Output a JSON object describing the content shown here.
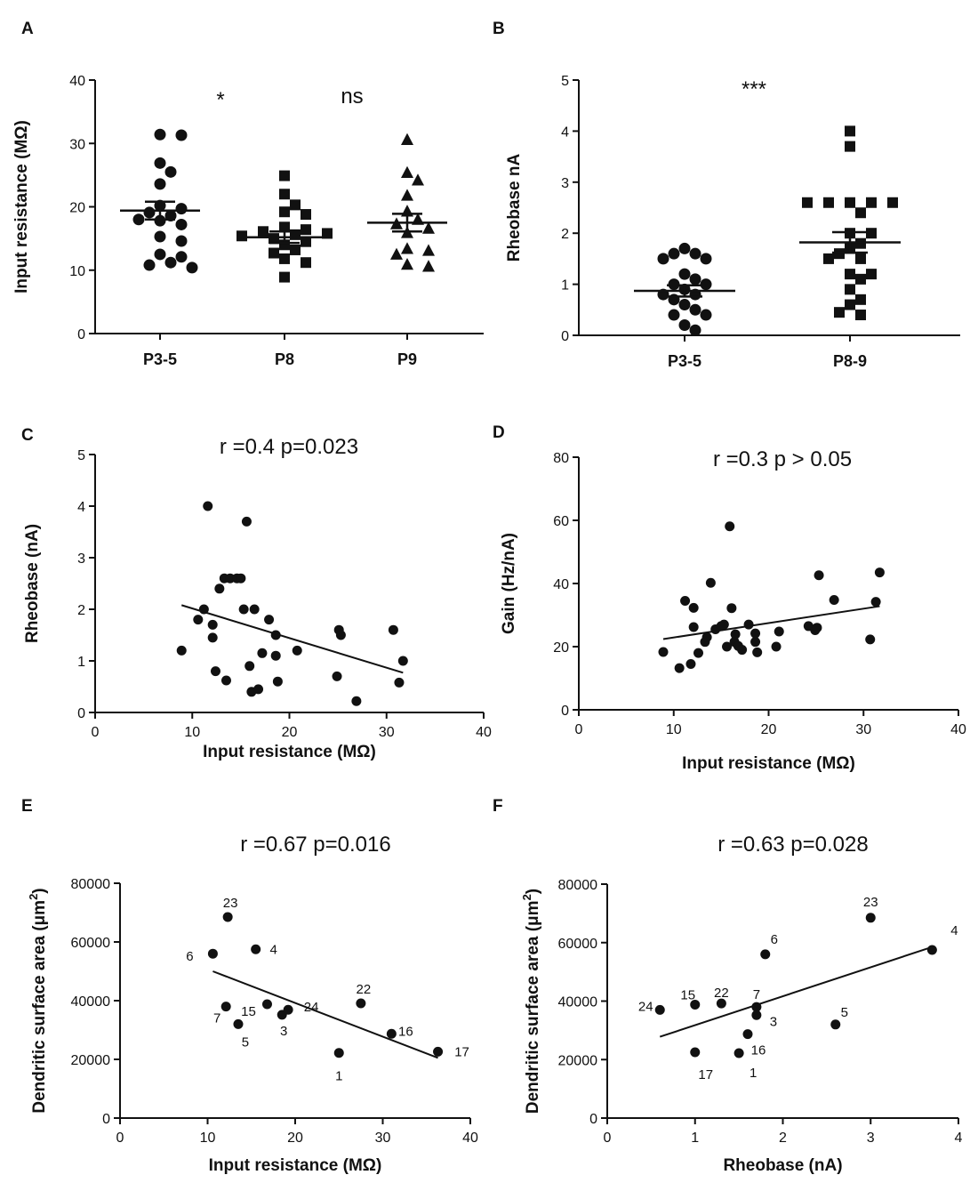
{
  "chart_data": [
    {
      "panel": "A",
      "type": "scatter",
      "subtype": "dot_plot",
      "ylabel": "Input resistance (MΩ)",
      "ylim": [
        0,
        40
      ],
      "yticks": [
        "0",
        "10",
        "20",
        "30",
        "40"
      ],
      "categories": [
        "P3-5",
        "P8",
        "P9"
      ],
      "significance": [
        "*",
        "ns"
      ],
      "marker": "circle,square,triangle",
      "groups": [
        {
          "category": "P3-5",
          "mean": 19.4,
          "sem": 1.4,
          "values": [
            31.4,
            31.3,
            26.9,
            25.5,
            23.6,
            20.2,
            19.7,
            19.1,
            18.6,
            18.0,
            17.8,
            17.2,
            15.3,
            14.6,
            12.5,
            12.1,
            11.2,
            10.8,
            10.4
          ]
        },
        {
          "category": "P8",
          "mean": 15.2,
          "sem": 0.9,
          "values": [
            24.9,
            22.0,
            20.3,
            19.2,
            18.8,
            16.8,
            16.4,
            16.1,
            15.8,
            15.6,
            15.4,
            15.0,
            14.5,
            14.0,
            13.2,
            12.7,
            11.8,
            11.2,
            8.9
          ]
        },
        {
          "category": "P9",
          "mean": 17.5,
          "sem": 1.4,
          "values": [
            30.5,
            25.3,
            24.1,
            21.7,
            19.2,
            17.9,
            17.2,
            16.5,
            15.8,
            13.3,
            13.0,
            12.4,
            10.8,
            10.5
          ]
        }
      ]
    },
    {
      "panel": "B",
      "type": "scatter",
      "subtype": "dot_plot",
      "ylabel": "Rheobase nA",
      "ylim": [
        0,
        5
      ],
      "yticks": [
        "0",
        "1",
        "2",
        "3",
        "4",
        "5"
      ],
      "categories": [
        "P3-5",
        "P8-9"
      ],
      "significance": [
        "***"
      ],
      "marker": "circle,square",
      "groups": [
        {
          "category": "P3-5",
          "mean": 0.87,
          "sem": 0.11,
          "values": [
            1.7,
            1.6,
            1.6,
            1.5,
            1.5,
            1.2,
            1.1,
            1.0,
            1.0,
            0.9,
            0.8,
            0.8,
            0.7,
            0.6,
            0.5,
            0.4,
            0.4,
            0.2,
            0.1
          ]
        },
        {
          "category": "P8-9",
          "mean": 1.82,
          "sem": 0.2,
          "values": [
            4.0,
            3.7,
            2.6,
            2.6,
            2.6,
            2.6,
            2.6,
            2.4,
            2.0,
            2.0,
            1.8,
            1.7,
            1.6,
            1.5,
            1.5,
            1.2,
            1.2,
            1.1,
            0.9,
            0.7,
            0.6,
            0.4,
            0.45
          ]
        }
      ]
    },
    {
      "panel": "C",
      "type": "scatter",
      "annotation": "r =0.4  p=0.023",
      "xlabel": "Input resistance (MΩ)",
      "ylabel": "Rheobase (nA)",
      "xlim": [
        0,
        40
      ],
      "ylim": [
        0,
        5
      ],
      "xticks": [
        "0",
        "10",
        "20",
        "30",
        "40"
      ],
      "yticks": [
        "0",
        "1",
        "2",
        "3",
        "4",
        "5"
      ],
      "points": [
        [
          8.9,
          1.2
        ],
        [
          10.6,
          1.8
        ],
        [
          11.2,
          2.0
        ],
        [
          11.6,
          4.0
        ],
        [
          12.1,
          1.7
        ],
        [
          12.1,
          1.45
        ],
        [
          12.4,
          0.8
        ],
        [
          12.8,
          2.4
        ],
        [
          13.3,
          2.6
        ],
        [
          13.5,
          0.62
        ],
        [
          13.9,
          2.6
        ],
        [
          14.6,
          2.6
        ],
        [
          15.0,
          2.6
        ],
        [
          15.3,
          2.0
        ],
        [
          15.6,
          3.7
        ],
        [
          15.9,
          0.9
        ],
        [
          16.1,
          0.4
        ],
        [
          16.4,
          2.0
        ],
        [
          16.8,
          0.45
        ],
        [
          17.2,
          1.15
        ],
        [
          17.9,
          1.8
        ],
        [
          18.6,
          1.1
        ],
        [
          18.6,
          1.5
        ],
        [
          18.8,
          0.6
        ],
        [
          20.8,
          1.2
        ],
        [
          24.9,
          0.7
        ],
        [
          25.1,
          1.6
        ],
        [
          25.3,
          1.5
        ],
        [
          26.9,
          0.22
        ],
        [
          30.7,
          1.6
        ],
        [
          31.3,
          0.58
        ],
        [
          31.7,
          1.0
        ]
      ],
      "fit": {
        "x": [
          8.9,
          31.7
        ],
        "y": [
          2.08,
          0.77
        ]
      }
    },
    {
      "panel": "D",
      "type": "scatter",
      "annotation": "r =0.3  p > 0.05",
      "xlabel": "Input resistance (MΩ)",
      "ylabel": "Gain (Hz/nA)",
      "xlim": [
        0,
        40
      ],
      "ylim": [
        0,
        80
      ],
      "xticks": [
        "0",
        "10",
        "20",
        "30",
        "40"
      ],
      "yticks": [
        "0",
        "20",
        "40",
        "60",
        "80"
      ],
      "points": [
        [
          8.9,
          18.3
        ],
        [
          10.6,
          13.2
        ],
        [
          11.2,
          34.5
        ],
        [
          11.8,
          14.5
        ],
        [
          12.1,
          32.3
        ],
        [
          12.1,
          26.2
        ],
        [
          12.6,
          18.0
        ],
        [
          13.3,
          21.5
        ],
        [
          13.5,
          23.0
        ],
        [
          13.9,
          40.2
        ],
        [
          14.4,
          25.5
        ],
        [
          15.0,
          26.5
        ],
        [
          15.3,
          27.0
        ],
        [
          15.6,
          20.0
        ],
        [
          15.9,
          58.1
        ],
        [
          16.1,
          32.2
        ],
        [
          16.4,
          21.5
        ],
        [
          16.5,
          23.9
        ],
        [
          16.8,
          20.2
        ],
        [
          17.2,
          19.0
        ],
        [
          17.9,
          27.0
        ],
        [
          18.6,
          21.5
        ],
        [
          18.6,
          24.2
        ],
        [
          18.8,
          18.2
        ],
        [
          20.8,
          20.0
        ],
        [
          21.1,
          24.8
        ],
        [
          24.2,
          26.5
        ],
        [
          24.9,
          25.2
        ],
        [
          25.1,
          26.0
        ],
        [
          25.3,
          42.6
        ],
        [
          26.9,
          34.8
        ],
        [
          30.7,
          22.3
        ],
        [
          31.3,
          34.2
        ],
        [
          31.7,
          43.5
        ]
      ],
      "fit": {
        "x": [
          8.9,
          31.7
        ],
        "y": [
          22.4,
          32.8
        ]
      }
    },
    {
      "panel": "E",
      "type": "scatter",
      "annotation": "r =0.67  p=0.016",
      "xlabel": "Input resistance (MΩ)",
      "ylabel": "Dendritic surface area (μm²)",
      "ylabel_main": "Dendritic surface area (μm",
      "ylabel_sup": "2",
      "ylabel_end": ")",
      "xlim": [
        0,
        40
      ],
      "ylim": [
        0,
        80000
      ],
      "xticks": [
        "0",
        "10",
        "20",
        "30",
        "40"
      ],
      "yticks": [
        "0",
        "20000",
        "40000",
        "60000",
        "80000"
      ],
      "points": [
        {
          "x": 10.6,
          "y": 56000,
          "label": "6"
        },
        {
          "x": 12.1,
          "y": 38000,
          "label": "7"
        },
        {
          "x": 12.3,
          "y": 68500,
          "label": "23"
        },
        {
          "x": 13.5,
          "y": 32000,
          "label": "5"
        },
        {
          "x": 15.5,
          "y": 57500,
          "label": "4"
        },
        {
          "x": 16.8,
          "y": 38800,
          "label": "15"
        },
        {
          "x": 18.5,
          "y": 35200,
          "label": "3"
        },
        {
          "x": 19.2,
          "y": 36900,
          "label": "24"
        },
        {
          "x": 25.0,
          "y": 22200,
          "label": "1"
        },
        {
          "x": 27.5,
          "y": 39100,
          "label": "22"
        },
        {
          "x": 31.0,
          "y": 28700,
          "label": "16"
        },
        {
          "x": 36.3,
          "y": 22600,
          "label": "17"
        }
      ],
      "fit": {
        "x": [
          10.6,
          36.3
        ],
        "y": [
          50000,
          20500
        ]
      }
    },
    {
      "panel": "F",
      "type": "scatter",
      "annotation": "r =0.63 p=0.028",
      "xlabel": "Rheobase (nA)",
      "ylabel": "Dendritic surface area (μm²)",
      "ylabel_main": "Dendritic surface area (μm",
      "ylabel_sup": "2",
      "ylabel_end": ")",
      "xlim": [
        0,
        4
      ],
      "ylim": [
        0,
        80000
      ],
      "xticks": [
        "0",
        "1",
        "2",
        "3",
        "4"
      ],
      "yticks": [
        "0",
        "20000",
        "40000",
        "60000",
        "80000"
      ],
      "points": [
        {
          "x": 0.6,
          "y": 37000,
          "label": "24"
        },
        {
          "x": 1.0,
          "y": 38800,
          "label": "15"
        },
        {
          "x": 1.0,
          "y": 22500,
          "label": "17"
        },
        {
          "x": 1.3,
          "y": 39200,
          "label": "22"
        },
        {
          "x": 1.5,
          "y": 22200,
          "label": "1"
        },
        {
          "x": 1.6,
          "y": 28700,
          "label": "16"
        },
        {
          "x": 1.7,
          "y": 38000,
          "label": "7"
        },
        {
          "x": 1.7,
          "y": 35200,
          "label": "3"
        },
        {
          "x": 1.8,
          "y": 56000,
          "label": "6"
        },
        {
          "x": 2.6,
          "y": 32000,
          "label": "5"
        },
        {
          "x": 3.0,
          "y": 68500,
          "label": "23"
        },
        {
          "x": 3.7,
          "y": 57500,
          "label": "4"
        }
      ],
      "fit": {
        "x": [
          0.6,
          3.7
        ],
        "y": [
          27800,
          58500
        ]
      }
    }
  ]
}
